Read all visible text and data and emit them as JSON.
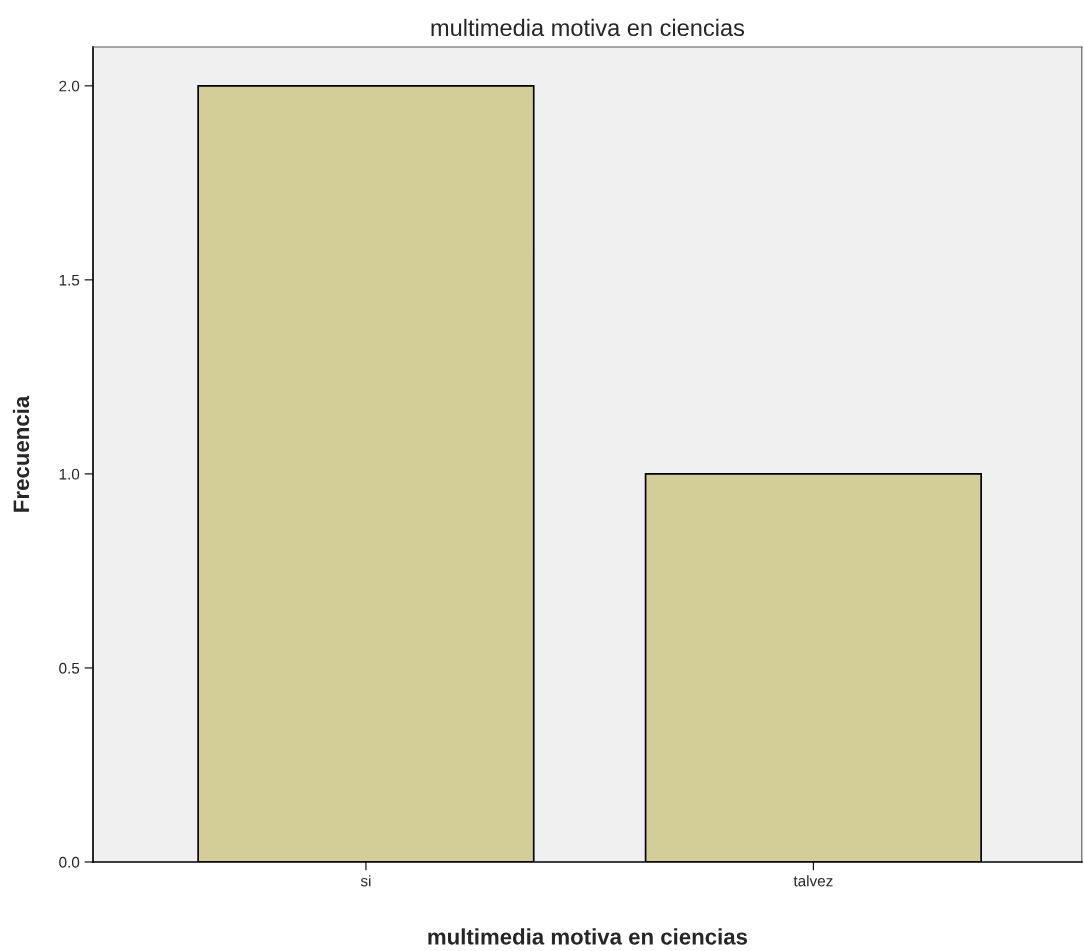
{
  "chart_data": {
    "type": "bar",
    "title": "multimedia motiva en ciencias",
    "xlabel": "multimedia motiva en ciencias",
    "ylabel": "Frecuencia",
    "categories": [
      "si",
      "talvez"
    ],
    "values": [
      2,
      1
    ],
    "color": "#d3ce97",
    "ylim": [
      0,
      2.1
    ],
    "yticks": [
      {
        "value": 0,
        "label": "0.0"
      },
      {
        "value": 0.5,
        "label": "0.5"
      },
      {
        "value": 1,
        "label": "1.0"
      },
      {
        "value": 1.5,
        "label": "1.5"
      },
      {
        "value": 2,
        "label": "2.0"
      }
    ],
    "grid": false,
    "legend": false
  }
}
